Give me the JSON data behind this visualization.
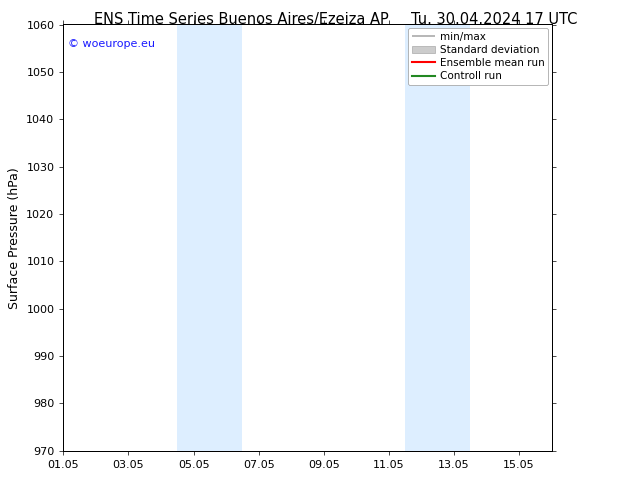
{
  "title_left": "ENS Time Series Buenos Aires/Ezeiza AP",
  "title_right": "Tu. 30.04.2024 17 UTC",
  "ylabel": "Surface Pressure (hPa)",
  "ylim": [
    970,
    1060
  ],
  "yticks": [
    970,
    980,
    990,
    1000,
    1010,
    1020,
    1030,
    1040,
    1050,
    1060
  ],
  "xtick_labels": [
    "01.05",
    "03.05",
    "05.05",
    "07.05",
    "09.05",
    "11.05",
    "13.05",
    "15.05"
  ],
  "xtick_positions": [
    0,
    2,
    4,
    6,
    8,
    10,
    12,
    14
  ],
  "xlim": [
    0,
    15
  ],
  "shaded_bands": [
    {
      "x_start": 3.5,
      "x_end": 5.5
    },
    {
      "x_start": 10.5,
      "x_end": 12.5
    }
  ],
  "shaded_color": "#ddeeff",
  "watermark_text": "© woeurope.eu",
  "watermark_color": "#1a1aff",
  "bg_color": "#ffffff",
  "legend_items": [
    {
      "label": "min/max",
      "color": "#aaaaaa",
      "lw": 1.5
    },
    {
      "label": "Standard deviation",
      "color": "#cccccc",
      "lw": 6
    },
    {
      "label": "Ensemble mean run",
      "color": "#ff0000",
      "lw": 1.5
    },
    {
      "label": "Controll run",
      "color": "#228822",
      "lw": 1.5
    }
  ],
  "title_fontsize": 10.5,
  "axis_label_fontsize": 9,
  "tick_fontsize": 8,
  "legend_fontsize": 7.5
}
